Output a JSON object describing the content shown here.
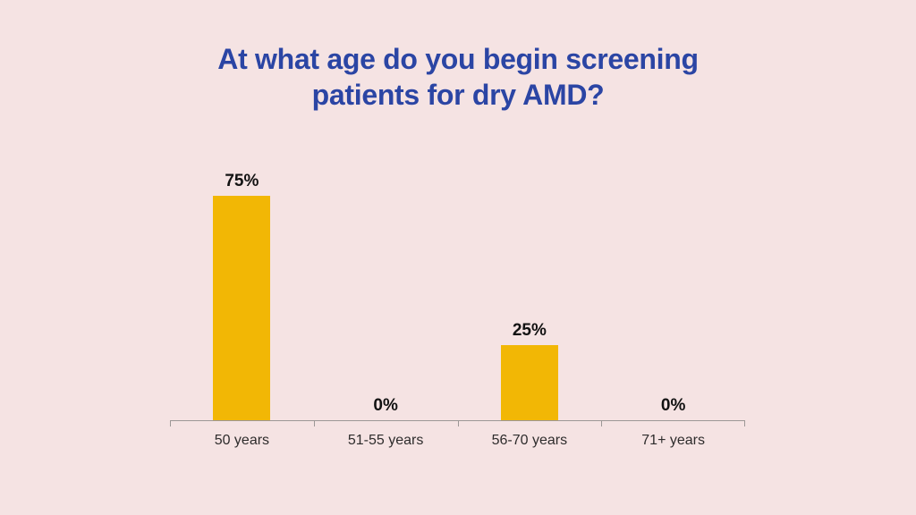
{
  "page": {
    "background_color": "#f5e3e3"
  },
  "header": {
    "title": "At what age do you begin screening patients for dry AMD?",
    "title_lines": [
      "At what age do you begin screening",
      "patients for dry AMD?"
    ],
    "title_color": "#2b45a4"
  },
  "chart_data": {
    "type": "bar",
    "title": "At what age do you begin screening patients for dry AMD?",
    "categories": [
      "50 years",
      "51-55 years",
      "56-70 years",
      "71+ years"
    ],
    "values": [
      75,
      0,
      25,
      0
    ],
    "value_labels": [
      "75%",
      "0%",
      "25%",
      "0%"
    ],
    "xlabel": "",
    "ylabel": "",
    "ylim": [
      0,
      100
    ],
    "grid": false,
    "legend_position": "none",
    "bar_color": "#f2b705",
    "axis_color": "#9c9796",
    "value_label_color": "#121212",
    "category_label_color": "#2e2c2c"
  }
}
